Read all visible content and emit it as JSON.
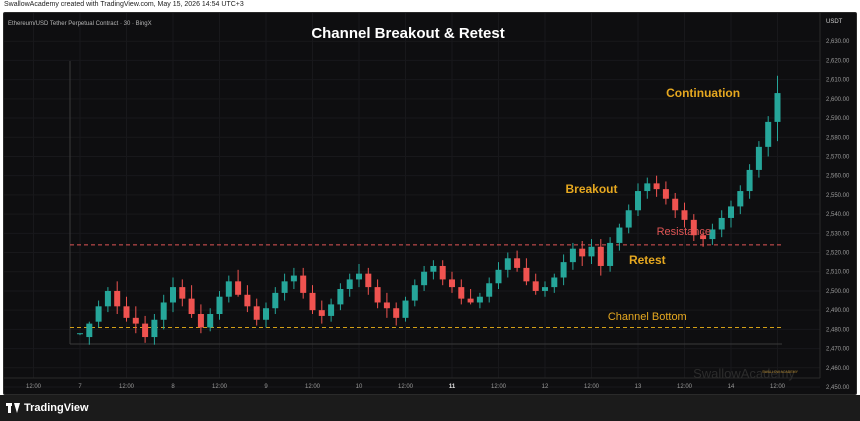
{
  "header": {
    "credit": "SwallowAcademy created with TradingView.com, May 15, 2026 14:54 UTC+3"
  },
  "symbol": "Ethereum/USD Tether Perpetual Contract · 30 · BingX",
  "currency": "USDT",
  "title": "Channel Breakout & Retest",
  "watermark": "SwallowAcademy",
  "watermark_small": "SWALLOW ACADEMY",
  "footer": {
    "brand": "TradingView",
    "logo_icon": "tradingview-logo-icon"
  },
  "colors": {
    "up": "#26a69a",
    "down": "#ef5350",
    "annotation": "#e6a820",
    "resistance": "#e05555",
    "channel_bottom": "#d4a017",
    "background": "#0e0e10"
  },
  "chart_data": {
    "type": "candlestick",
    "title": "Channel Breakout & Retest",
    "ylim": [
      2450,
      2640
    ],
    "y_ticks": [
      "2,630.00",
      "2,620.00",
      "2,610.00",
      "2,600.00",
      "2,590.00",
      "2,580.00",
      "2,570.00",
      "2,560.00",
      "2,550.00",
      "2,540.00",
      "2,530.00",
      "2,520.00",
      "2,510.00",
      "2,500.00",
      "2,490.00",
      "2,480.00",
      "2,470.00",
      "2,460.00",
      "2,450.00"
    ],
    "y_tick_values": [
      2630,
      2620,
      2610,
      2600,
      2590,
      2580,
      2570,
      2560,
      2550,
      2540,
      2530,
      2520,
      2510,
      2500,
      2490,
      2480,
      2470,
      2460,
      2450
    ],
    "x_ticks": [
      {
        "label": "12:00",
        "bar": -5,
        "bold": false
      },
      {
        "label": "7",
        "bar": 0,
        "bold": false
      },
      {
        "label": "12:00",
        "bar": 5,
        "bold": false
      },
      {
        "label": "8",
        "bar": 10,
        "bold": false
      },
      {
        "label": "12:00",
        "bar": 15,
        "bold": false
      },
      {
        "label": "9",
        "bar": 20,
        "bold": false
      },
      {
        "label": "12:00",
        "bar": 25,
        "bold": false
      },
      {
        "label": "10",
        "bar": 30,
        "bold": false
      },
      {
        "label": "12:00",
        "bar": 35,
        "bold": false
      },
      {
        "label": "11",
        "bar": 40,
        "bold": true
      },
      {
        "label": "12:00",
        "bar": 45,
        "bold": false
      },
      {
        "label": "12",
        "bar": 50,
        "bold": false
      },
      {
        "label": "12:00",
        "bar": 55,
        "bold": false
      },
      {
        "label": "13",
        "bar": 60,
        "bold": false
      },
      {
        "label": "12:00",
        "bar": 65,
        "bold": false
      },
      {
        "label": "14",
        "bar": 70,
        "bold": false
      },
      {
        "label": "12:00",
        "bar": 75,
        "bold": false
      }
    ],
    "candles": [
      {
        "o": 2478,
        "h": 2478,
        "l": 2477,
        "c": 2478
      },
      {
        "o": 2476,
        "h": 2484,
        "l": 2472,
        "c": 2483
      },
      {
        "o": 2484,
        "h": 2495,
        "l": 2481,
        "c": 2492
      },
      {
        "o": 2492,
        "h": 2502,
        "l": 2489,
        "c": 2500
      },
      {
        "o": 2500,
        "h": 2505,
        "l": 2488,
        "c": 2492
      },
      {
        "o": 2492,
        "h": 2497,
        "l": 2484,
        "c": 2486
      },
      {
        "o": 2486,
        "h": 2492,
        "l": 2478,
        "c": 2483
      },
      {
        "o": 2483,
        "h": 2487,
        "l": 2473,
        "c": 2476
      },
      {
        "o": 2476,
        "h": 2488,
        "l": 2472,
        "c": 2485
      },
      {
        "o": 2485,
        "h": 2498,
        "l": 2480,
        "c": 2494
      },
      {
        "o": 2494,
        "h": 2507,
        "l": 2489,
        "c": 2502
      },
      {
        "o": 2502,
        "h": 2506,
        "l": 2492,
        "c": 2496
      },
      {
        "o": 2496,
        "h": 2503,
        "l": 2486,
        "c": 2488
      },
      {
        "o": 2488,
        "h": 2493,
        "l": 2478,
        "c": 2481
      },
      {
        "o": 2481,
        "h": 2491,
        "l": 2479,
        "c": 2488
      },
      {
        "o": 2488,
        "h": 2500,
        "l": 2485,
        "c": 2497
      },
      {
        "o": 2497,
        "h": 2508,
        "l": 2494,
        "c": 2505
      },
      {
        "o": 2505,
        "h": 2511,
        "l": 2497,
        "c": 2498
      },
      {
        "o": 2498,
        "h": 2503,
        "l": 2489,
        "c": 2492
      },
      {
        "o": 2492,
        "h": 2496,
        "l": 2482,
        "c": 2485
      },
      {
        "o": 2485,
        "h": 2494,
        "l": 2481,
        "c": 2491
      },
      {
        "o": 2491,
        "h": 2502,
        "l": 2488,
        "c": 2499
      },
      {
        "o": 2499,
        "h": 2509,
        "l": 2495,
        "c": 2505
      },
      {
        "o": 2505,
        "h": 2512,
        "l": 2501,
        "c": 2508
      },
      {
        "o": 2508,
        "h": 2512,
        "l": 2496,
        "c": 2499
      },
      {
        "o": 2499,
        "h": 2503,
        "l": 2488,
        "c": 2490
      },
      {
        "o": 2490,
        "h": 2495,
        "l": 2483,
        "c": 2487
      },
      {
        "o": 2487,
        "h": 2496,
        "l": 2484,
        "c": 2493
      },
      {
        "o": 2493,
        "h": 2504,
        "l": 2490,
        "c": 2501
      },
      {
        "o": 2501,
        "h": 2509,
        "l": 2497,
        "c": 2506
      },
      {
        "o": 2506,
        "h": 2514,
        "l": 2502,
        "c": 2509
      },
      {
        "o": 2509,
        "h": 2512,
        "l": 2498,
        "c": 2502
      },
      {
        "o": 2502,
        "h": 2506,
        "l": 2491,
        "c": 2494
      },
      {
        "o": 2494,
        "h": 2499,
        "l": 2486,
        "c": 2491
      },
      {
        "o": 2491,
        "h": 2494,
        "l": 2482,
        "c": 2486
      },
      {
        "o": 2486,
        "h": 2497,
        "l": 2484,
        "c": 2495
      },
      {
        "o": 2495,
        "h": 2506,
        "l": 2492,
        "c": 2503
      },
      {
        "o": 2503,
        "h": 2513,
        "l": 2500,
        "c": 2510
      },
      {
        "o": 2510,
        "h": 2516,
        "l": 2506,
        "c": 2513
      },
      {
        "o": 2513,
        "h": 2516,
        "l": 2503,
        "c": 2506
      },
      {
        "o": 2506,
        "h": 2510,
        "l": 2499,
        "c": 2502
      },
      {
        "o": 2502,
        "h": 2506,
        "l": 2493,
        "c": 2496
      },
      {
        "o": 2496,
        "h": 2501,
        "l": 2493,
        "c": 2494
      },
      {
        "o": 2494,
        "h": 2499,
        "l": 2491,
        "c": 2497
      },
      {
        "o": 2497,
        "h": 2507,
        "l": 2494,
        "c": 2504
      },
      {
        "o": 2504,
        "h": 2515,
        "l": 2501,
        "c": 2511
      },
      {
        "o": 2511,
        "h": 2520,
        "l": 2507,
        "c": 2517
      },
      {
        "o": 2517,
        "h": 2521,
        "l": 2510,
        "c": 2512
      },
      {
        "o": 2512,
        "h": 2517,
        "l": 2503,
        "c": 2505
      },
      {
        "o": 2505,
        "h": 2509,
        "l": 2498,
        "c": 2500
      },
      {
        "o": 2500,
        "h": 2505,
        "l": 2497,
        "c": 2502
      },
      {
        "o": 2502,
        "h": 2509,
        "l": 2499,
        "c": 2507
      },
      {
        "o": 2507,
        "h": 2519,
        "l": 2503,
        "c": 2515
      },
      {
        "o": 2515,
        "h": 2525,
        "l": 2511,
        "c": 2522
      },
      {
        "o": 2522,
        "h": 2526,
        "l": 2513,
        "c": 2518
      },
      {
        "o": 2518,
        "h": 2527,
        "l": 2514,
        "c": 2523
      },
      {
        "o": 2523,
        "h": 2527,
        "l": 2508,
        "c": 2513
      },
      {
        "o": 2513,
        "h": 2528,
        "l": 2510,
        "c": 2525
      },
      {
        "o": 2525,
        "h": 2535,
        "l": 2521,
        "c": 2533
      },
      {
        "o": 2533,
        "h": 2545,
        "l": 2530,
        "c": 2542
      },
      {
        "o": 2542,
        "h": 2556,
        "l": 2539,
        "c": 2552
      },
      {
        "o": 2552,
        "h": 2559,
        "l": 2548,
        "c": 2556
      },
      {
        "o": 2556,
        "h": 2560,
        "l": 2549,
        "c": 2553
      },
      {
        "o": 2553,
        "h": 2557,
        "l": 2545,
        "c": 2548
      },
      {
        "o": 2548,
        "h": 2551,
        "l": 2538,
        "c": 2542
      },
      {
        "o": 2542,
        "h": 2546,
        "l": 2533,
        "c": 2537
      },
      {
        "o": 2537,
        "h": 2540,
        "l": 2526,
        "c": 2529
      },
      {
        "o": 2529,
        "h": 2531,
        "l": 2523,
        "c": 2527
      },
      {
        "o": 2527,
        "h": 2535,
        "l": 2524,
        "c": 2532
      },
      {
        "o": 2532,
        "h": 2542,
        "l": 2528,
        "c": 2538
      },
      {
        "o": 2538,
        "h": 2547,
        "l": 2533,
        "c": 2544
      },
      {
        "o": 2544,
        "h": 2555,
        "l": 2540,
        "c": 2552
      },
      {
        "o": 2552,
        "h": 2566,
        "l": 2548,
        "c": 2563
      },
      {
        "o": 2563,
        "h": 2578,
        "l": 2559,
        "c": 2575
      },
      {
        "o": 2575,
        "h": 2591,
        "l": 2570,
        "c": 2588
      },
      {
        "o": 2588,
        "h": 2612,
        "l": 2578,
        "c": 2603
      }
    ],
    "levels": [
      {
        "name": "Resistance",
        "value": 2524,
        "style": "dashed"
      },
      {
        "name": "Channel Bottom",
        "value": 2481,
        "style": "dashed"
      }
    ],
    "annotations": [
      {
        "text": "Continuation",
        "bar": 67,
        "y": 2601
      },
      {
        "text": "Breakout",
        "bar": 55,
        "y": 2551
      },
      {
        "text": "Retest",
        "bar": 61,
        "y": 2514
      },
      {
        "text": "Resistance",
        "bar": 62,
        "y": 2529
      },
      {
        "text": "Channel Bottom",
        "bar": 61,
        "y": 2485
      }
    ]
  }
}
